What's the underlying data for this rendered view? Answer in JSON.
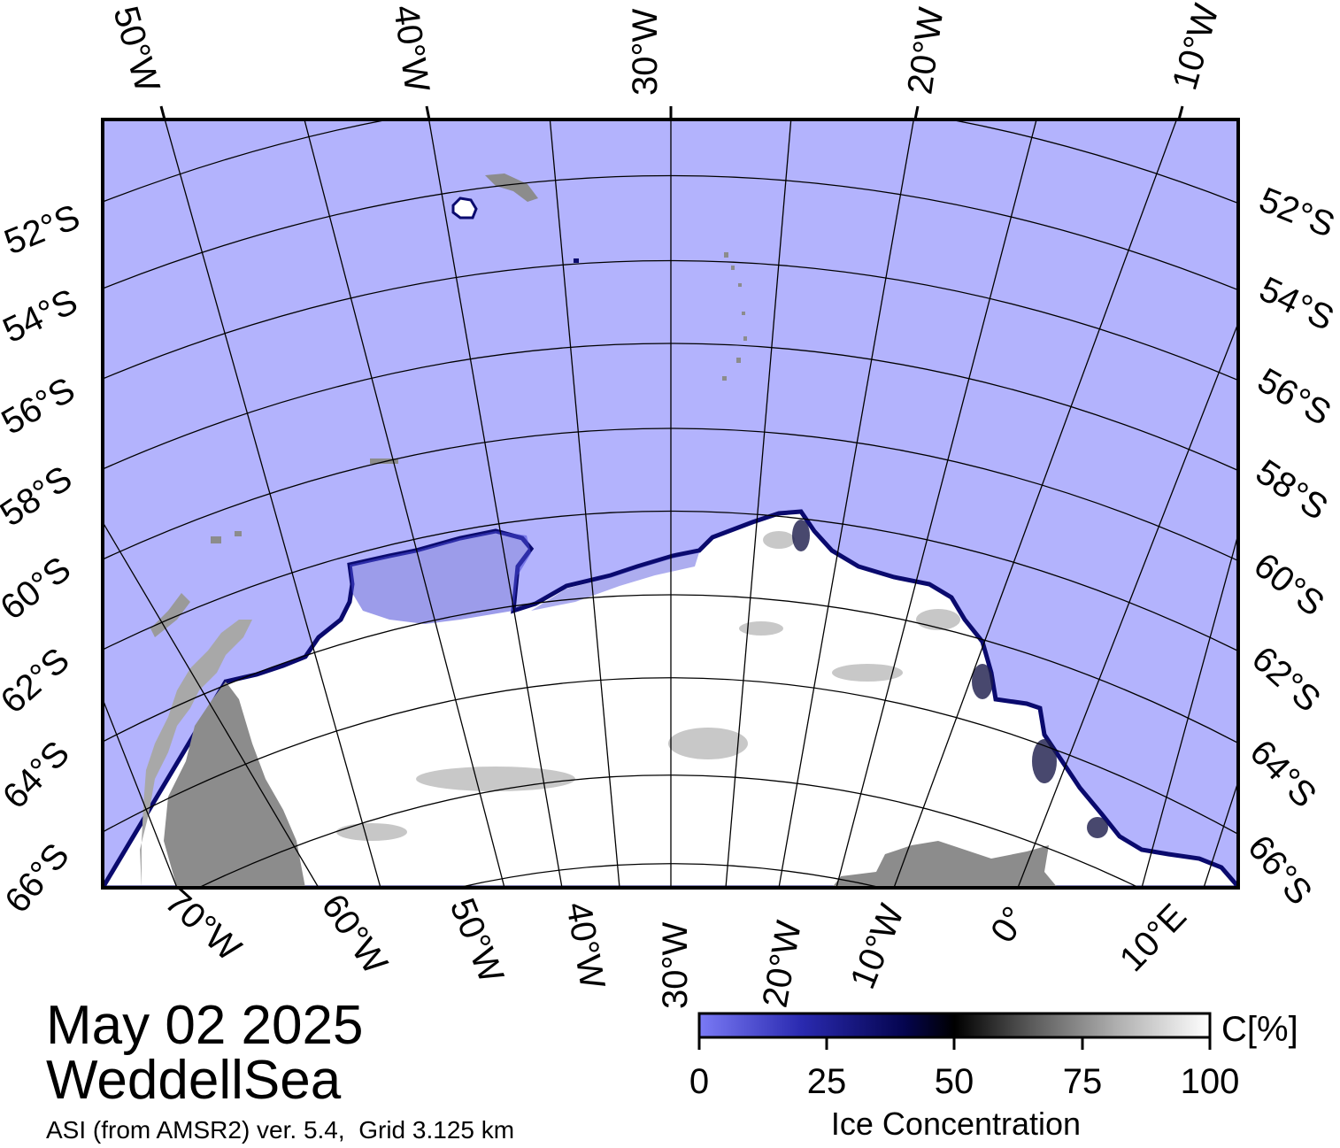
{
  "map": {
    "top_lon_labels": [
      "50°W",
      "40°W",
      "30°W",
      "20°W",
      "10°W"
    ],
    "bottom_lon_labels": [
      "70°W",
      "60°W",
      "50°W",
      "40°W",
      "30°W",
      "20°W",
      "10°W",
      "0°",
      "10°E"
    ],
    "left_lat_labels": [
      "52°S",
      "54°S",
      "56°S",
      "58°S",
      "60°S",
      "62°S",
      "64°S",
      "66°S"
    ],
    "right_lat_labels": [
      "52°S",
      "54°S",
      "56°S",
      "58°S",
      "60°S",
      "62°S",
      "64°S",
      "66°S"
    ],
    "colors": {
      "ocean": "#b3b3fd",
      "ice_high": "#ffffff",
      "ice_edge": "#0a0a6e",
      "land": "#8c8c8c",
      "land_light": "#a8a8a8",
      "grid": "#000000"
    }
  },
  "colorbar": {
    "unit": "C[%]",
    "ticks": [
      "0",
      "25",
      "50",
      "75",
      "100"
    ],
    "title": "Ice Concentration",
    "stops": [
      "#7a7af5",
      "#2a2ab0",
      "#050550",
      "#000000",
      "#5a5a5a",
      "#b0b0b0",
      "#ffffff"
    ]
  },
  "caption": {
    "date": "May 02 2025",
    "region": "WeddellSea",
    "source": "ASI (from AMSR2) ver. 5.4,  Grid 3.125 km"
  }
}
